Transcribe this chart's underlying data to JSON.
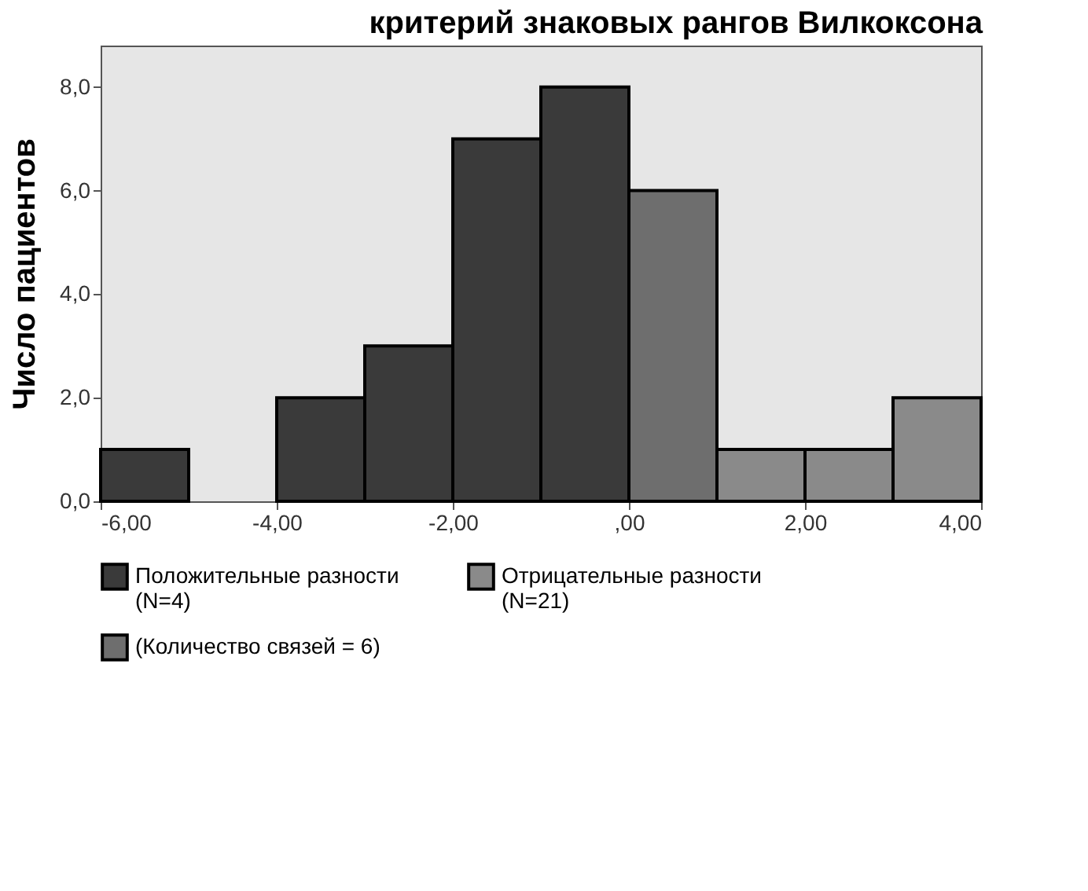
{
  "chart_data": {
    "type": "histogram",
    "title": "критерий знаковых рангов Вилкоксона",
    "ylabel": "Число пациентов",
    "bins": [
      -6,
      -5,
      -4,
      -3,
      -2,
      -1,
      0,
      1,
      2,
      3,
      4
    ],
    "series": [
      {
        "name": "Положительные разности\n(N=4)",
        "color": "#3a3a3a",
        "values": [
          1,
          null,
          2,
          3,
          7,
          8,
          null,
          null,
          null,
          null
        ]
      },
      {
        "name": "Отрицательные разности\n(N=21)",
        "color": "#8a8a8a",
        "values": [
          null,
          null,
          null,
          null,
          null,
          null,
          null,
          1,
          1,
          2
        ]
      },
      {
        "name": "(Количество связей = 6)",
        "color": "#6e6e6e",
        "values": [
          null,
          null,
          null,
          null,
          null,
          null,
          6,
          null,
          null,
          null
        ]
      }
    ],
    "xlim": [
      -6,
      4
    ],
    "ylim": [
      0,
      8.8
    ],
    "xticks": [
      {
        "value": -6,
        "label": "-6,00"
      },
      {
        "value": -4,
        "label": "-4,00"
      },
      {
        "value": -2,
        "label": "-2,00"
      },
      {
        "value": 0,
        "label": ",00"
      },
      {
        "value": 2,
        "label": "2,00"
      },
      {
        "value": 4,
        "label": "4,00"
      }
    ],
    "yticks": [
      {
        "value": 0,
        "label": "0,0"
      },
      {
        "value": 2,
        "label": "2,0"
      },
      {
        "value": 4,
        "label": "4,0"
      },
      {
        "value": 6,
        "label": "6,0"
      },
      {
        "value": 8,
        "label": "8,0"
      }
    ],
    "legend": "bottom",
    "grid": false
  }
}
